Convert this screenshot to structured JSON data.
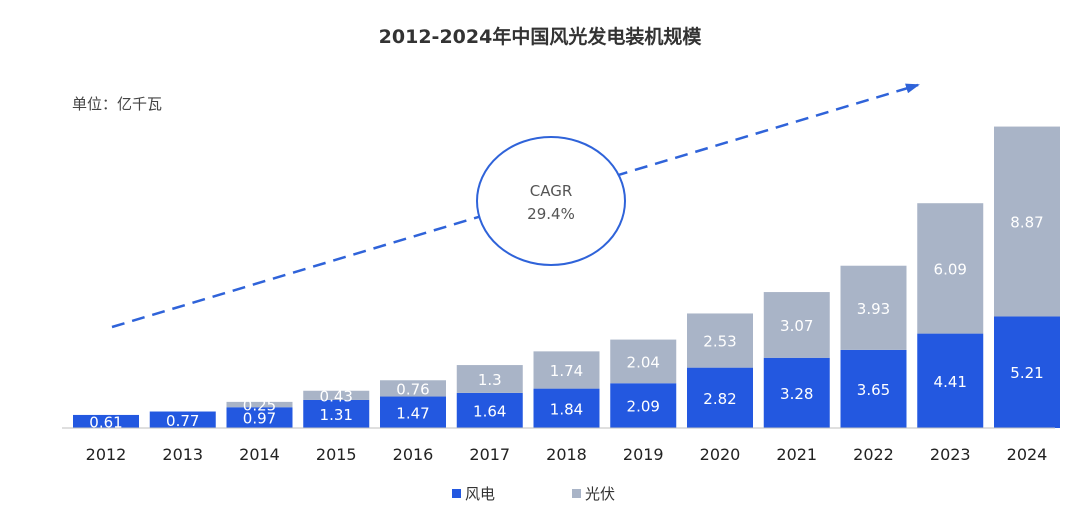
{
  "title": "2012-2024年中国风光发电装机规模",
  "unit_label": "单位：亿千瓦",
  "annotation": {
    "line1": "CAGR",
    "line2": "29.4%"
  },
  "colors": {
    "wind": "#2358E0",
    "solar": "#A9B4C7",
    "arrow": "#2F63D9",
    "axis": "#BFBFBF"
  },
  "chart_data": {
    "type": "bar",
    "stacked": true,
    "categories": [
      "2012",
      "2013",
      "2014",
      "2015",
      "2016",
      "2017",
      "2018",
      "2019",
      "2020",
      "2021",
      "2022",
      "2023",
      "2024"
    ],
    "series": [
      {
        "name": "风电",
        "values": [
          0.61,
          0.77,
          0.97,
          1.31,
          1.47,
          1.64,
          1.84,
          2.09,
          2.82,
          3.28,
          3.65,
          4.41,
          5.21
        ]
      },
      {
        "name": "光伏",
        "values": [
          null,
          null,
          0.25,
          0.43,
          0.76,
          1.3,
          1.74,
          2.04,
          2.53,
          3.07,
          3.93,
          6.09,
          8.87
        ]
      }
    ],
    "ylim": [
      0,
      14.2
    ],
    "grid": false,
    "legend": "bottom"
  }
}
